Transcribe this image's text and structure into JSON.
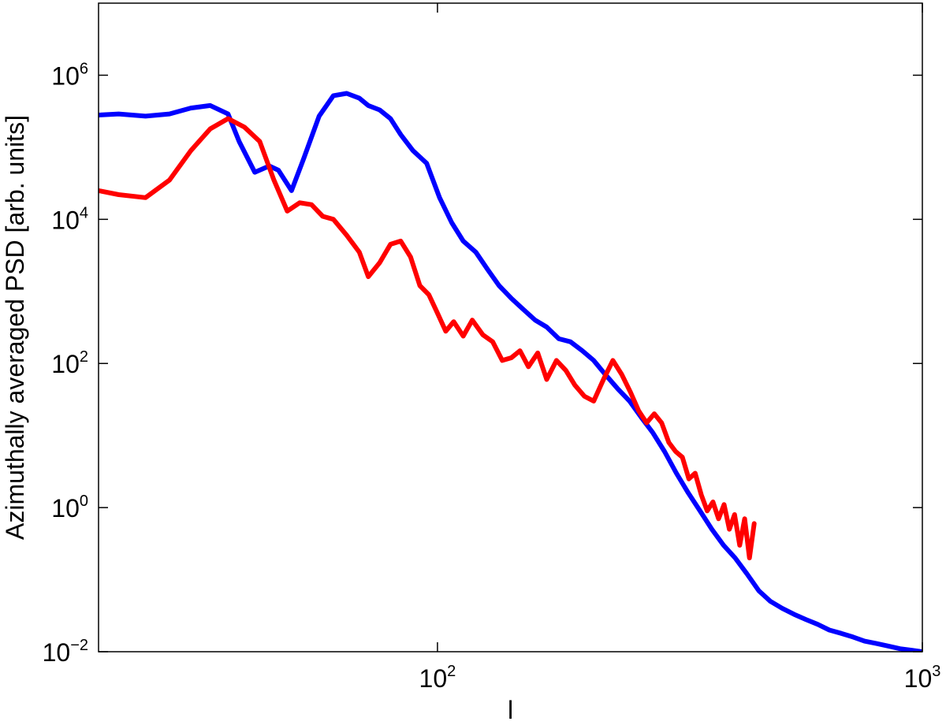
{
  "chart_data": {
    "type": "line",
    "title": "",
    "xlabel": "l",
    "ylabel": "Azimuthally averaged PSD [arb. units]",
    "x_scale": "log",
    "y_scale": "log",
    "xlim": [
      20,
      1000
    ],
    "ylim": [
      0.01,
      10000000
    ],
    "grid": false,
    "x_ticks": [
      {
        "value": 100,
        "base": "10",
        "exp": "2"
      },
      {
        "value": 1000,
        "base": "10",
        "exp": "3"
      }
    ],
    "y_ticks": [
      {
        "value": 0.01,
        "base": "10",
        "exp": "−2"
      },
      {
        "value": 1,
        "base": "10",
        "exp": "0"
      },
      {
        "value": 100,
        "base": "10",
        "exp": "2"
      },
      {
        "value": 10000,
        "base": "10",
        "exp": "4"
      },
      {
        "value": 1000000,
        "base": "10",
        "exp": "6"
      }
    ],
    "series": [
      {
        "color": "#0000ff",
        "x": [
          20,
          22,
          25,
          28,
          31,
          34,
          37,
          39,
          42,
          45,
          47,
          50,
          53,
          57,
          61,
          65,
          69,
          72,
          76,
          80,
          84,
          89,
          95,
          101,
          107,
          113,
          120,
          127,
          134,
          142,
          150,
          159,
          168,
          178,
          188,
          199,
          210,
          222,
          235,
          249,
          263,
          278,
          294,
          311,
          329,
          348,
          368,
          389,
          411,
          435,
          460,
          486,
          514,
          544,
          575,
          608,
          643,
          680,
          719,
          760,
          804,
          850,
          899,
          950,
          1000
        ],
        "y": [
          280000,
          290000,
          270000,
          290000,
          350000,
          380000,
          290000,
          120000,
          45000,
          55000,
          48000,
          25000,
          70000,
          270000,
          520000,
          560000,
          480000,
          380000,
          330000,
          250000,
          150000,
          90000,
          60000,
          20000,
          9000,
          5000,
          3500,
          2000,
          1200,
          800,
          570,
          400,
          320,
          220,
          200,
          150,
          110,
          70,
          45,
          30,
          18,
          11,
          6,
          3,
          1.6,
          0.9,
          0.5,
          0.3,
          0.2,
          0.12,
          0.07,
          0.05,
          0.04,
          0.033,
          0.028,
          0.024,
          0.02,
          0.018,
          0.016,
          0.014,
          0.013,
          0.012,
          0.011,
          0.0105,
          0.01
        ]
      },
      {
        "color": "#ff0000",
        "x": [
          20,
          22,
          25,
          28,
          31,
          34,
          37,
          40,
          43,
          46,
          49,
          52,
          55,
          58,
          61,
          65,
          69,
          72,
          76,
          80,
          84,
          88,
          92,
          96,
          100,
          104,
          108,
          113,
          118,
          124,
          130,
          136,
          142,
          148,
          154,
          161,
          168,
          176,
          184,
          192,
          201,
          210,
          220,
          230,
          240,
          250,
          260,
          270,
          280,
          290,
          300,
          310,
          320,
          330,
          340,
          350,
          360,
          370,
          380,
          390,
          400,
          410,
          420,
          430,
          440,
          450
        ],
        "y": [
          25000,
          22000,
          20000,
          35000,
          90000,
          180000,
          250000,
          190000,
          120000,
          35000,
          13000,
          17000,
          16000,
          11000,
          10000,
          6000,
          3500,
          1600,
          2500,
          4500,
          5000,
          3000,
          1200,
          900,
          500,
          280,
          380,
          240,
          400,
          250,
          200,
          110,
          120,
          150,
          90,
          140,
          60,
          110,
          80,
          50,
          35,
          30,
          60,
          110,
          70,
          40,
          22,
          15,
          20,
          15,
          8,
          6,
          5,
          2.5,
          3,
          1.5,
          0.9,
          1.2,
          0.7,
          1.1,
          0.5,
          0.8,
          0.3,
          0.7,
          0.2,
          0.6
        ]
      }
    ],
    "legend": "none"
  }
}
